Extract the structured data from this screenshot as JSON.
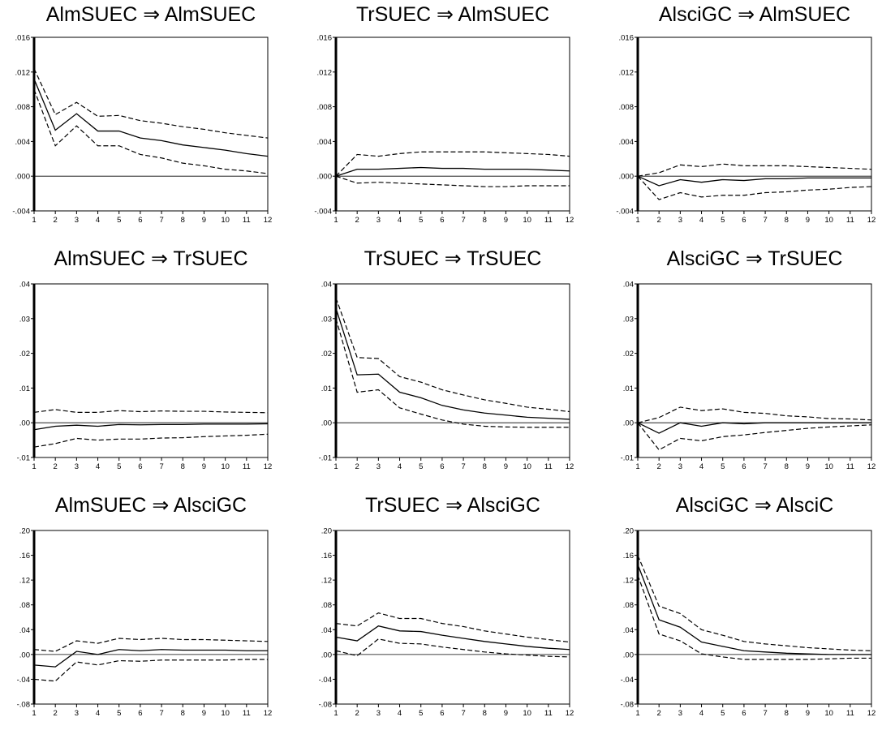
{
  "chart_data": [
    {
      "type": "line",
      "title": "AlmSUEC ⇒ AlmSUEC",
      "x": [
        1,
        2,
        3,
        4,
        5,
        6,
        7,
        8,
        9,
        10,
        11,
        12
      ],
      "ylim": [
        -0.004,
        0.016
      ],
      "yticks": [
        ".016",
        ".012",
        ".008",
        ".004",
        ".000",
        "-.004"
      ],
      "yticks_values": [
        0.016,
        0.012,
        0.008,
        0.004,
        0.0,
        -0.004
      ],
      "series": [
        {
          "values": [
            0.0112,
            0.0053,
            0.0072,
            0.0052,
            0.0052,
            0.0044,
            0.0041,
            0.0036,
            0.0033,
            0.003,
            0.0026,
            0.0023
          ],
          "style": "solid"
        },
        {
          "values": [
            0.0124,
            0.0071,
            0.0085,
            0.0069,
            0.007,
            0.0064,
            0.0061,
            0.0057,
            0.0054,
            0.005,
            0.0047,
            0.0044
          ],
          "style": "dashed"
        },
        {
          "values": [
            0.01,
            0.0035,
            0.0058,
            0.0035,
            0.0035,
            0.0025,
            0.0021,
            0.0015,
            0.0012,
            0.0008,
            0.0006,
            0.0003
          ],
          "style": "dashed"
        }
      ]
    },
    {
      "type": "line",
      "title": "TrSUEC ⇒ AlmSUEC",
      "x": [
        1,
        2,
        3,
        4,
        5,
        6,
        7,
        8,
        9,
        10,
        11,
        12
      ],
      "ylim": [
        -0.004,
        0.016
      ],
      "yticks": [
        ".016",
        ".012",
        ".008",
        ".004",
        ".000",
        "-.004"
      ],
      "yticks_values": [
        0.016,
        0.012,
        0.008,
        0.004,
        0.0,
        -0.004
      ],
      "series": [
        {
          "values": [
            0.0,
            0.0008,
            0.0008,
            0.0009,
            0.001,
            0.0009,
            0.0009,
            0.0008,
            0.0008,
            0.0008,
            0.0007,
            0.0006
          ],
          "style": "solid"
        },
        {
          "values": [
            0.0,
            0.0025,
            0.0023,
            0.0026,
            0.0028,
            0.0028,
            0.0028,
            0.0028,
            0.0027,
            0.0026,
            0.0025,
            0.0023
          ],
          "style": "dashed"
        },
        {
          "values": [
            0.0,
            -0.0008,
            -0.0007,
            -0.0008,
            -0.0009,
            -0.001,
            -0.0011,
            -0.0012,
            -0.0012,
            -0.0011,
            -0.0011,
            -0.0011
          ],
          "style": "dashed"
        }
      ]
    },
    {
      "type": "line",
      "title": "AlsciGC ⇒ AlmSUEC",
      "x": [
        1,
        2,
        3,
        4,
        5,
        6,
        7,
        8,
        9,
        10,
        11,
        12
      ],
      "ylim": [
        -0.004,
        0.016
      ],
      "yticks": [
        ".016",
        ".012",
        ".008",
        ".004",
        ".000",
        "-.004"
      ],
      "yticks_values": [
        0.016,
        0.012,
        0.008,
        0.004,
        0.0,
        -0.004
      ],
      "series": [
        {
          "values": [
            0.0,
            -0.0011,
            -0.0004,
            -0.0007,
            -0.0004,
            -0.0005,
            -0.0003,
            -0.0003,
            -0.0002,
            -0.0002,
            -0.0002,
            -0.0002
          ],
          "style": "solid"
        },
        {
          "values": [
            0.0,
            0.0004,
            0.0013,
            0.0011,
            0.0014,
            0.0012,
            0.0012,
            0.0012,
            0.0011,
            0.001,
            0.0009,
            0.0008
          ],
          "style": "dashed"
        },
        {
          "values": [
            0.0,
            -0.0027,
            -0.0019,
            -0.0024,
            -0.0022,
            -0.0022,
            -0.0019,
            -0.0018,
            -0.0016,
            -0.0015,
            -0.0013,
            -0.0012
          ],
          "style": "dashed"
        }
      ]
    },
    {
      "type": "line",
      "title": "AlmSUEC ⇒ TrSUEC",
      "x": [
        1,
        2,
        3,
        4,
        5,
        6,
        7,
        8,
        9,
        10,
        11,
        12
      ],
      "ylim": [
        -0.01,
        0.04
      ],
      "yticks": [
        ".04",
        ".03",
        ".02",
        ".01",
        ".00",
        "-.01"
      ],
      "yticks_values": [
        0.04,
        0.03,
        0.02,
        0.01,
        0.0,
        -0.01
      ],
      "series": [
        {
          "values": [
            -0.002,
            -0.001,
            -0.0007,
            -0.001,
            -0.0005,
            -0.0006,
            -0.0005,
            -0.0005,
            -0.0004,
            -0.0004,
            -0.0004,
            -0.0003
          ],
          "style": "solid"
        },
        {
          "values": [
            0.003,
            0.0038,
            0.003,
            0.003,
            0.0035,
            0.0032,
            0.0034,
            0.0033,
            0.0033,
            0.0031,
            0.003,
            0.0029
          ],
          "style": "dashed"
        },
        {
          "values": [
            -0.007,
            -0.006,
            -0.0045,
            -0.005,
            -0.0047,
            -0.0047,
            -0.0044,
            -0.0043,
            -0.004,
            -0.0038,
            -0.0036,
            -0.0033
          ],
          "style": "dashed"
        }
      ]
    },
    {
      "type": "line",
      "title": "TrSUEC ⇒ TrSUEC",
      "x": [
        1,
        2,
        3,
        4,
        5,
        6,
        7,
        8,
        9,
        10,
        11,
        12
      ],
      "ylim": [
        -0.01,
        0.04
      ],
      "yticks": [
        ".04",
        ".03",
        ".02",
        ".01",
        ".00",
        "-.01"
      ],
      "yticks_values": [
        0.04,
        0.03,
        0.02,
        0.01,
        0.0,
        -0.01
      ],
      "series": [
        {
          "values": [
            0.033,
            0.0138,
            0.014,
            0.0088,
            0.0072,
            0.005,
            0.0037,
            0.0028,
            0.0022,
            0.0016,
            0.0013,
            0.001
          ],
          "style": "solid"
        },
        {
          "values": [
            0.036,
            0.0188,
            0.0185,
            0.0133,
            0.0117,
            0.0095,
            0.008,
            0.0066,
            0.0056,
            0.0045,
            0.0039,
            0.0032
          ],
          "style": "dashed"
        },
        {
          "values": [
            0.03,
            0.0088,
            0.0095,
            0.0043,
            0.0025,
            0.0008,
            -0.0004,
            -0.001,
            -0.0012,
            -0.0013,
            -0.0013,
            -0.0013
          ],
          "style": "dashed"
        }
      ]
    },
    {
      "type": "line",
      "title": "AlsciGC ⇒ TrSUEC",
      "x": [
        1,
        2,
        3,
        4,
        5,
        6,
        7,
        8,
        9,
        10,
        11,
        12
      ],
      "ylim": [
        -0.01,
        0.04
      ],
      "yticks": [
        ".04",
        ".03",
        ".02",
        ".01",
        ".00",
        "-.01"
      ],
      "yticks_values": [
        0.04,
        0.03,
        0.02,
        0.01,
        0.0,
        -0.01
      ],
      "series": [
        {
          "values": [
            0.0,
            -0.003,
            0.0,
            -0.001,
            0.0,
            -0.0003,
            0.0,
            0.0,
            0.0,
            0.0,
            0.0,
            0.0
          ],
          "style": "solid"
        },
        {
          "values": [
            0.0,
            0.0015,
            0.0045,
            0.0035,
            0.004,
            0.003,
            0.0027,
            0.002,
            0.0017,
            0.0012,
            0.0011,
            0.0008
          ],
          "style": "dashed"
        },
        {
          "values": [
            0.0,
            -0.0078,
            -0.0045,
            -0.0052,
            -0.004,
            -0.0035,
            -0.0028,
            -0.0022,
            -0.0016,
            -0.0012,
            -0.0009,
            -0.0006
          ],
          "style": "dashed"
        }
      ]
    },
    {
      "type": "line",
      "title": "AlmSUEC ⇒ AlsciGC",
      "x": [
        1,
        2,
        3,
        4,
        5,
        6,
        7,
        8,
        9,
        10,
        11,
        12
      ],
      "ylim": [
        -0.08,
        0.2
      ],
      "yticks": [
        ".20",
        ".16",
        ".12",
        ".08",
        ".04",
        ".00",
        "-.04",
        "-.08"
      ],
      "yticks_values": [
        0.2,
        0.16,
        0.12,
        0.08,
        0.04,
        0.0,
        -0.04,
        -0.08
      ],
      "series": [
        {
          "values": [
            -0.017,
            -0.02,
            0.005,
            0.0,
            0.008,
            0.006,
            0.008,
            0.007,
            0.007,
            0.007,
            0.006,
            0.006
          ],
          "style": "solid"
        },
        {
          "values": [
            0.008,
            0.005,
            0.022,
            0.018,
            0.026,
            0.024,
            0.026,
            0.024,
            0.024,
            0.023,
            0.022,
            0.021
          ],
          "style": "dashed"
        },
        {
          "values": [
            -0.04,
            -0.043,
            -0.012,
            -0.017,
            -0.01,
            -0.011,
            -0.009,
            -0.009,
            -0.009,
            -0.009,
            -0.008,
            -0.008
          ],
          "style": "dashed"
        }
      ]
    },
    {
      "type": "line",
      "title": "TrSUEC ⇒ AlsciGC",
      "x": [
        1,
        2,
        3,
        4,
        5,
        6,
        7,
        8,
        9,
        10,
        11,
        12
      ],
      "ylim": [
        -0.08,
        0.2
      ],
      "yticks": [
        ".20",
        ".16",
        ".12",
        ".08",
        ".04",
        ".00",
        "-.04",
        "-.08"
      ],
      "yticks_values": [
        0.2,
        0.16,
        0.12,
        0.08,
        0.04,
        0.0,
        -0.04,
        -0.08
      ],
      "series": [
        {
          "values": [
            0.028,
            0.022,
            0.046,
            0.038,
            0.037,
            0.031,
            0.026,
            0.021,
            0.017,
            0.013,
            0.01,
            0.008
          ],
          "style": "solid"
        },
        {
          "values": [
            0.05,
            0.046,
            0.067,
            0.058,
            0.058,
            0.05,
            0.045,
            0.038,
            0.033,
            0.028,
            0.024,
            0.02
          ],
          "style": "dashed"
        },
        {
          "values": [
            0.006,
            -0.002,
            0.025,
            0.018,
            0.017,
            0.012,
            0.008,
            0.004,
            0.001,
            -0.001,
            -0.003,
            -0.004
          ],
          "style": "dashed"
        }
      ]
    },
    {
      "type": "line",
      "title": "AlsciGC ⇒ AlsciC",
      "x": [
        1,
        2,
        3,
        4,
        5,
        6,
        7,
        8,
        9,
        10,
        11,
        12
      ],
      "ylim": [
        -0.08,
        0.2
      ],
      "yticks": [
        ".20",
        ".16",
        ".12",
        ".08",
        ".04",
        ".00",
        "-.04",
        "-.08"
      ],
      "yticks_values": [
        0.2,
        0.16,
        0.12,
        0.08,
        0.04,
        0.0,
        -0.04,
        -0.08
      ],
      "series": [
        {
          "values": [
            0.145,
            0.056,
            0.044,
            0.02,
            0.013,
            0.006,
            0.004,
            0.002,
            0.001,
            0.0,
            0.0,
            0.0
          ],
          "style": "solid"
        },
        {
          "values": [
            0.16,
            0.078,
            0.066,
            0.04,
            0.031,
            0.021,
            0.017,
            0.014,
            0.011,
            0.009,
            0.007,
            0.006
          ],
          "style": "dashed"
        },
        {
          "values": [
            0.128,
            0.033,
            0.022,
            0.001,
            -0.004,
            -0.008,
            -0.008,
            -0.008,
            -0.008,
            -0.007,
            -0.006,
            -0.006
          ],
          "style": "dashed"
        }
      ]
    }
  ]
}
